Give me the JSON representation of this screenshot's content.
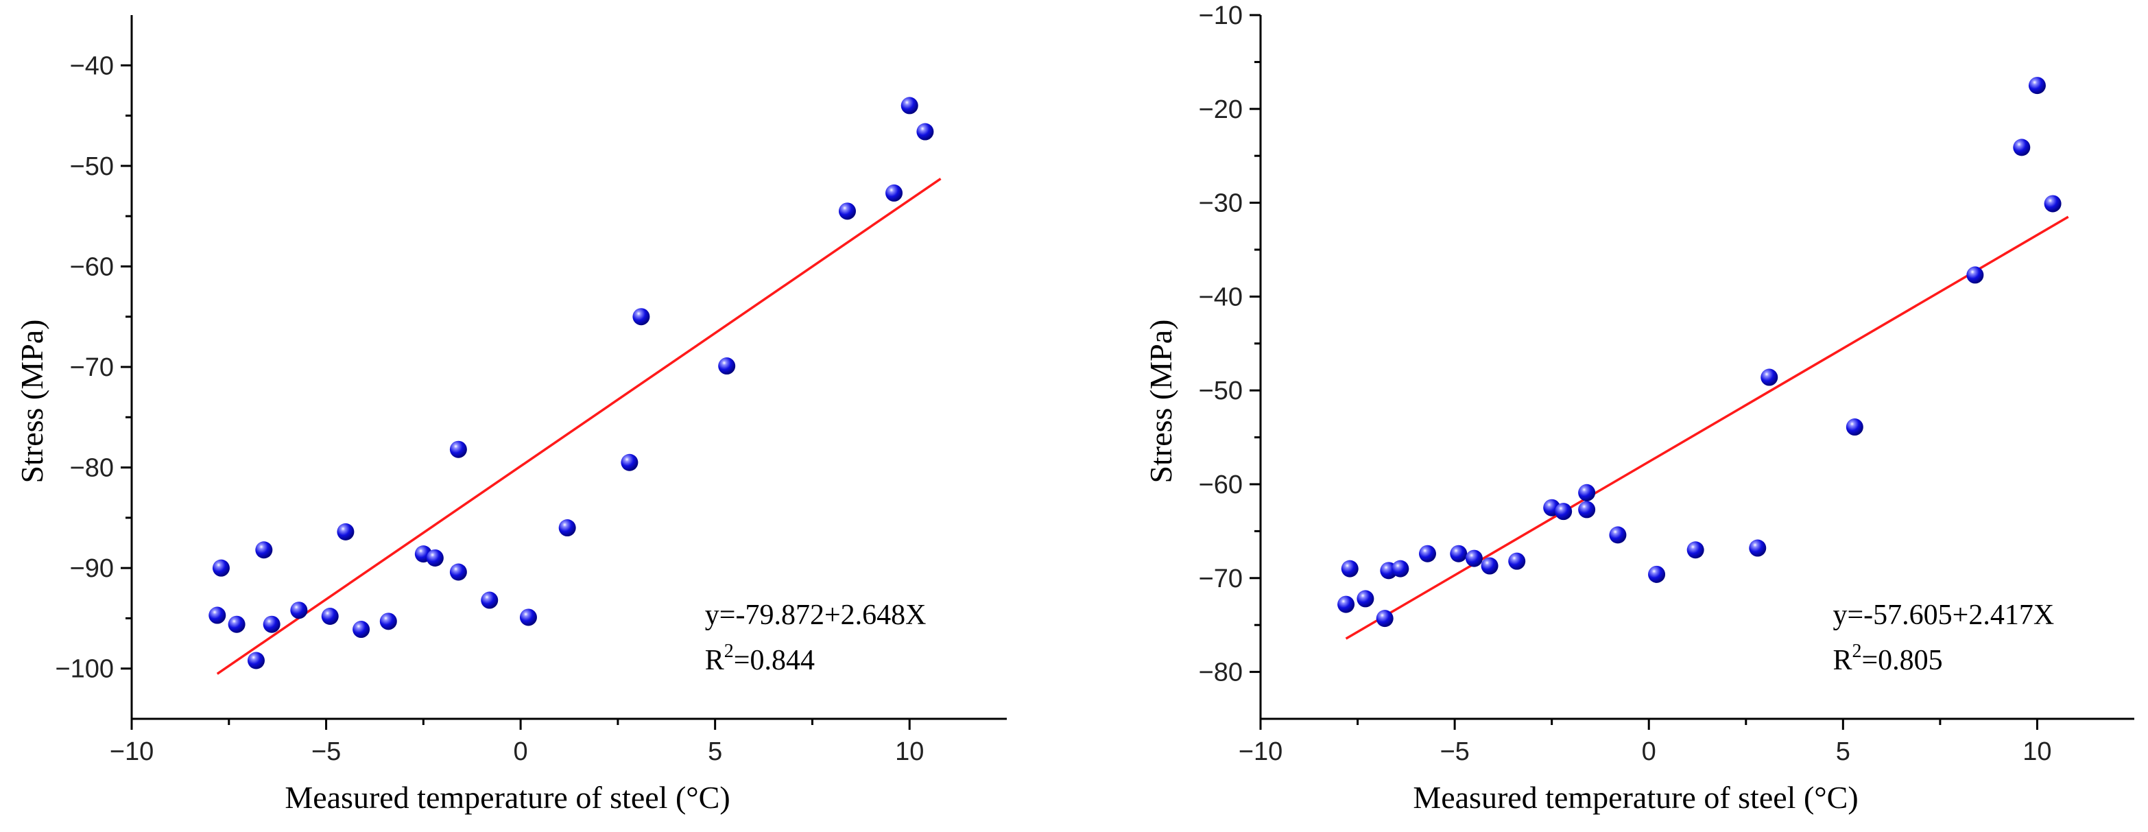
{
  "chart_data": [
    {
      "type": "scatter",
      "xlabel": "Measured temperature of steel (°C)",
      "ylabel": "Stress (MPa)",
      "xlim": [
        -10,
        12.5
      ],
      "ylim": [
        -105,
        -35
      ],
      "xticks": [
        -10,
        -5,
        0,
        5,
        10
      ],
      "yticks": [
        -100,
        -90,
        -80,
        -70,
        -60,
        -50,
        -40
      ],
      "xtick_labels": [
        "−10",
        "−5",
        "0",
        "5",
        "10"
      ],
      "ytick_labels": [
        "−100",
        "−90",
        "−80",
        "−70",
        "−60",
        "−50",
        "−40"
      ],
      "fit": {
        "intercept": -79.872,
        "slope": 2.648,
        "x_range": [
          -7.8,
          10.8
        ]
      },
      "equation_text": "y=-79.872+2.648X",
      "r2_label": "R",
      "r2_sup": "2",
      "r2_value": "=0.844",
      "point_color": "#1010e0",
      "line_color": "#ff1a1a",
      "x": [
        -7.8,
        -7.7,
        -7.3,
        -6.8,
        -6.6,
        -6.4,
        -5.7,
        -4.9,
        -4.5,
        -4.1,
        -3.4,
        -2.5,
        -2.2,
        -1.6,
        -1.6,
        -0.8,
        0.2,
        1.2,
        2.8,
        3.1,
        5.3,
        8.4,
        9.6,
        10.0,
        10.4
      ],
      "y": [
        -94.7,
        -90.0,
        -95.6,
        -99.2,
        -88.2,
        -95.6,
        -94.2,
        -94.8,
        -86.4,
        -96.1,
        -95.3,
        -88.6,
        -89.0,
        -90.4,
        -78.2,
        -93.2,
        -94.9,
        -86.0,
        -79.5,
        -65.0,
        -69.9,
        -54.5,
        -52.7,
        -44.0,
        -46.6
      ]
    },
    {
      "type": "scatter",
      "xlabel": "Measured temperature of steel (°C)",
      "ylabel": "Stress (MPa)",
      "xlim": [
        -10,
        12.5
      ],
      "ylim": [
        -85,
        -10
      ],
      "xticks": [
        -10,
        -5,
        0,
        5,
        10
      ],
      "yticks": [
        -80,
        -70,
        -60,
        -50,
        -40,
        -30,
        -20,
        -10
      ],
      "xtick_labels": [
        "−10",
        "−5",
        "0",
        "5",
        "10"
      ],
      "ytick_labels": [
        "−80",
        "−70",
        "−60",
        "−50",
        "−40",
        "−30",
        "−20",
        "−10"
      ],
      "fit": {
        "intercept": -57.605,
        "slope": 2.417,
        "x_range": [
          -7.8,
          10.8
        ]
      },
      "equation_text": "y=-57.605+2.417X",
      "r2_label": "R",
      "r2_sup": "2",
      "r2_value": "=0.805",
      "point_color": "#1010e0",
      "line_color": "#ff1a1a",
      "x": [
        -7.8,
        -7.7,
        -7.3,
        -6.8,
        -6.7,
        -6.4,
        -5.7,
        -4.9,
        -4.5,
        -4.1,
        -3.4,
        -2.5,
        -2.2,
        -1.6,
        -1.6,
        -0.8,
        0.2,
        1.2,
        2.8,
        3.1,
        5.3,
        8.4,
        9.6,
        10.0,
        10.4
      ],
      "y": [
        -72.8,
        -69.0,
        -72.2,
        -74.3,
        -69.2,
        -69.0,
        -67.4,
        -67.4,
        -67.9,
        -68.7,
        -68.2,
        -62.5,
        -62.9,
        -62.7,
        -60.9,
        -65.4,
        -69.6,
        -67.0,
        -66.8,
        -48.6,
        -53.9,
        -37.7,
        -24.1,
        -17.5,
        -30.1
      ]
    }
  ]
}
